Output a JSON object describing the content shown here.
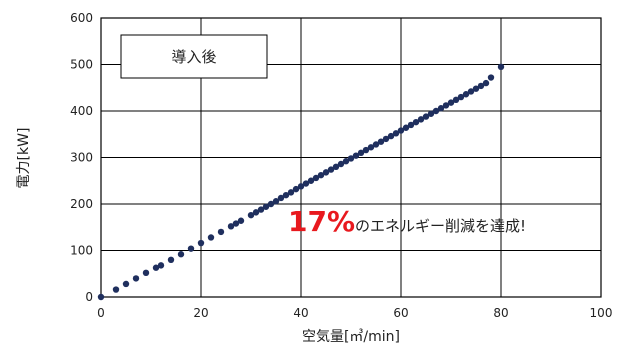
{
  "chart_data": {
    "type": "scatter",
    "xlabel": "空気量[㎥/min]",
    "ylabel": "電力[kW]",
    "xlim": [
      0,
      100
    ],
    "ylim": [
      0,
      600
    ],
    "xticks": [
      "0",
      "20",
      "40",
      "60",
      "80",
      "100"
    ],
    "yticks": [
      "0",
      "100",
      "200",
      "300",
      "400",
      "500",
      "600"
    ],
    "grid": true,
    "legend": {
      "label": "導入後",
      "placement": "top-left"
    },
    "annotation": {
      "emphasis": "17%",
      "text": "のエネルギー削減を達成!"
    },
    "series": [
      {
        "color": "#1f2f5e",
        "points": [
          [
            0,
            0
          ],
          [
            3,
            16
          ],
          [
            5,
            28
          ],
          [
            7,
            40
          ],
          [
            9,
            52
          ],
          [
            11,
            63
          ],
          [
            12,
            68
          ],
          [
            14,
            80
          ],
          [
            16,
            92
          ],
          [
            18,
            104
          ],
          [
            20,
            116
          ],
          [
            22,
            128
          ],
          [
            24,
            140
          ],
          [
            26,
            152
          ],
          [
            27,
            158
          ],
          [
            28,
            164
          ],
          [
            30,
            176
          ],
          [
            31,
            182
          ],
          [
            32,
            188
          ],
          [
            33,
            194
          ],
          [
            34,
            200
          ],
          [
            35,
            206
          ],
          [
            36,
            213
          ],
          [
            37,
            219
          ],
          [
            38,
            225
          ],
          [
            39,
            232
          ],
          [
            40,
            238
          ],
          [
            41,
            244
          ],
          [
            42,
            250
          ],
          [
            43,
            256
          ],
          [
            44,
            262
          ],
          [
            45,
            268
          ],
          [
            46,
            274
          ],
          [
            47,
            280
          ],
          [
            48,
            286
          ],
          [
            49,
            292
          ],
          [
            50,
            298
          ],
          [
            51,
            304
          ],
          [
            52,
            310
          ],
          [
            53,
            316
          ],
          [
            54,
            322
          ],
          [
            55,
            328
          ],
          [
            56,
            334
          ],
          [
            57,
            340
          ],
          [
            58,
            346
          ],
          [
            59,
            352
          ],
          [
            60,
            358
          ],
          [
            61,
            364
          ],
          [
            62,
            370
          ],
          [
            63,
            376
          ],
          [
            64,
            382
          ],
          [
            65,
            388
          ],
          [
            66,
            394
          ],
          [
            67,
            400
          ],
          [
            68,
            406
          ],
          [
            69,
            412
          ],
          [
            70,
            418
          ],
          [
            71,
            424
          ],
          [
            72,
            430
          ],
          [
            73,
            436
          ],
          [
            74,
            442
          ],
          [
            75,
            448
          ],
          [
            76,
            454
          ],
          [
            77,
            460
          ],
          [
            78,
            472
          ],
          [
            80,
            495
          ]
        ]
      }
    ]
  }
}
